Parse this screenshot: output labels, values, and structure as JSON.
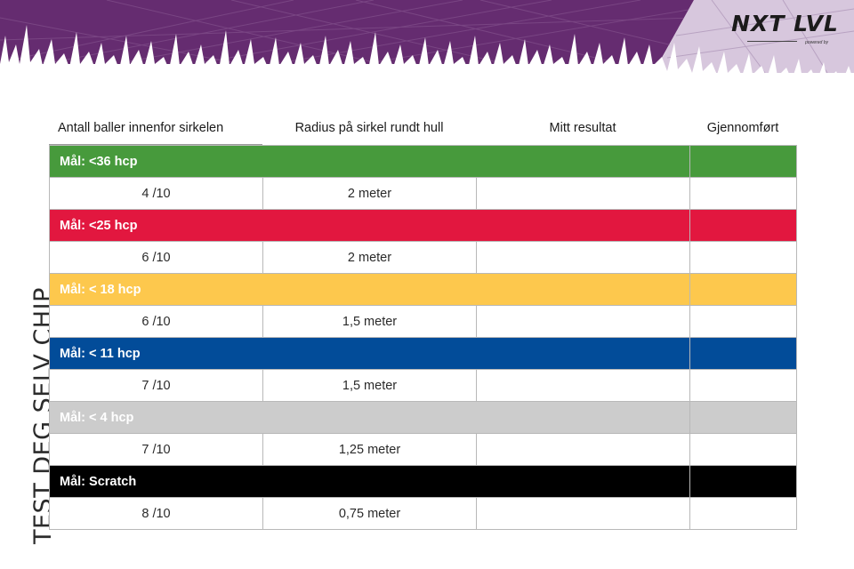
{
  "logo": {
    "name": "NXT LVL",
    "sub": "powered by"
  },
  "side_title": "TEST DEG SELV CHIP",
  "table": {
    "headers": [
      "Antall baller innenfor sirkelen",
      "Radius på sirkel rundt hull",
      "Mitt resultat",
      "Gjennomført"
    ],
    "levels": [
      {
        "label": "Mål: <36 hcp",
        "color": "#479a3c",
        "balls": "4 /10",
        "radius": "2 meter",
        "result": "",
        "done": ""
      },
      {
        "label": "Mål: <25 hcp",
        "color": "#e2173f",
        "balls": "6 /10",
        "radius": "2 meter",
        "result": "",
        "done": ""
      },
      {
        "label": "Mål: < 18 hcp",
        "color": "#fdc84d",
        "balls": "6 /10",
        "radius": "1,5 meter",
        "result": "",
        "done": ""
      },
      {
        "label": "Mål: < 11 hcp",
        "color": "#024c99",
        "balls": "7 /10",
        "radius": "1,5 meter",
        "result": "",
        "done": ""
      },
      {
        "label": "Mål: < 4 hcp",
        "color": "#cccccc",
        "balls": "7 /10",
        "radius": "1,25 meter",
        "result": "",
        "done": ""
      },
      {
        "label": "Mål: Scratch",
        "color": "#000000",
        "balls": "8 /10",
        "radius": "0,75 meter",
        "result": "",
        "done": ""
      }
    ]
  },
  "colors": {
    "banner_purple": "#652c70",
    "banner_light": "#d7c7dd"
  }
}
